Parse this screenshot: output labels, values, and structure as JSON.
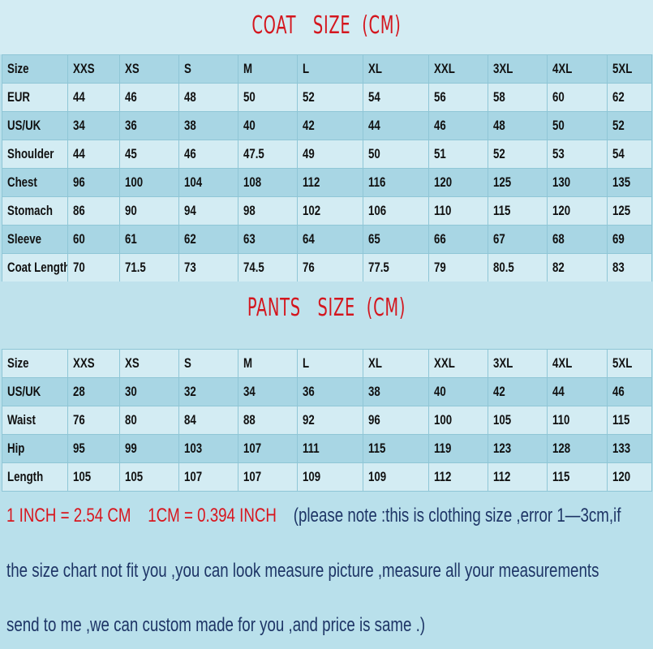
{
  "coat": {
    "title": "COAT   SIZE  (CM)",
    "rows": [
      [
        "Size",
        "XXS",
        "XS",
        "S",
        "M",
        "L",
        "XL",
        "XXL",
        "3XL",
        "4XL",
        "5XL"
      ],
      [
        "EUR",
        "44",
        "46",
        "48",
        "50",
        "52",
        "54",
        "56",
        "58",
        "60",
        "62"
      ],
      [
        "US/UK",
        "34",
        "36",
        "38",
        "40",
        "42",
        "44",
        "46",
        "48",
        "50",
        "52"
      ],
      [
        "Shoulder",
        "44",
        "45",
        "46",
        "47.5",
        "49",
        "50",
        "51",
        "52",
        "53",
        "54"
      ],
      [
        "Chest",
        "96",
        "100",
        "104",
        "108",
        "112",
        "116",
        "120",
        "125",
        "130",
        "135"
      ],
      [
        "Stomach",
        "86",
        "90",
        "94",
        "98",
        "102",
        "106",
        "110",
        "115",
        "120",
        "125"
      ],
      [
        "Sleeve",
        "60",
        "61",
        "62",
        "63",
        "64",
        "65",
        "66",
        "67",
        "68",
        "69"
      ],
      [
        "Coat Length",
        "70",
        "71.5",
        "73",
        "74.5",
        "76",
        "77.5",
        "79",
        "80.5",
        "82",
        "83"
      ]
    ]
  },
  "pants": {
    "title": "PANTS   SIZE  (CM)",
    "rows": [
      [
        "Size",
        "XXS",
        "XS",
        "S",
        "M",
        "L",
        "XL",
        "XXL",
        "3XL",
        "4XL",
        "5XL"
      ],
      [
        "US/UK",
        "28",
        "30",
        "32",
        "34",
        "36",
        "38",
        "40",
        "42",
        "44",
        "46"
      ],
      [
        "Waist",
        "76",
        "80",
        "84",
        "88",
        "92",
        "96",
        "100",
        "105",
        "110",
        "115"
      ],
      [
        "Hip",
        "95",
        "99",
        "103",
        "107",
        "111",
        "115",
        "119",
        "123",
        "128",
        "133"
      ],
      [
        "Length",
        "105",
        "105",
        "107",
        "107",
        "109",
        "109",
        "112",
        "112",
        "115",
        "120"
      ]
    ]
  },
  "notes": {
    "conversion_inch": "1 INCH = 2.54 CM",
    "conversion_cm": "1CM = 0.394 INCH",
    "line1": "(please note :this is clothing size ,error 1—3cm,if",
    "line2": "the size chart not fit you ,you can look measure picture ,measure all your measurements",
    "line3": "send to me ,we can custom made for you ,and price is same .)"
  },
  "colors": {
    "title_red": "#d4161e",
    "note_blue": "#1e3566",
    "row_dark": "#a8d6e4",
    "row_light": "#d3ecf3"
  }
}
